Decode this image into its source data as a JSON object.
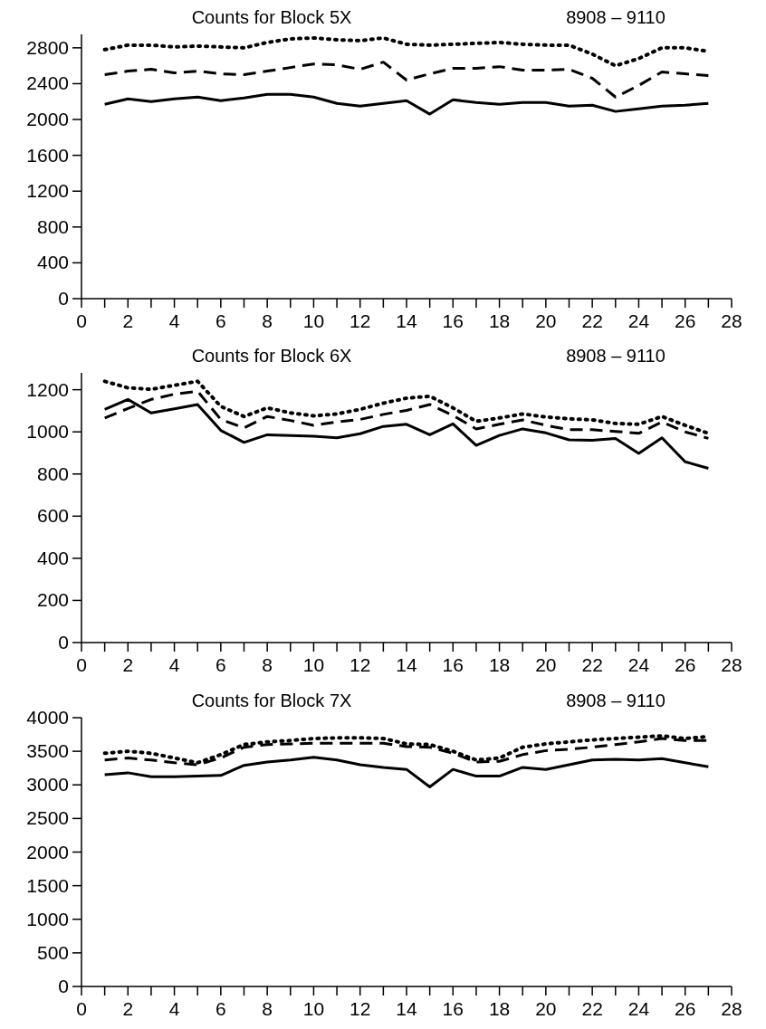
{
  "chart_data": [
    {
      "type": "line",
      "title": "Counts for Block 5X",
      "subtitle": "8908 – 9110",
      "x": [
        1,
        2,
        3,
        4,
        5,
        6,
        7,
        8,
        9,
        10,
        11,
        12,
        13,
        14,
        15,
        16,
        17,
        18,
        19,
        20,
        21,
        22,
        23,
        24,
        25,
        26,
        27
      ],
      "series": [
        {
          "color": "#000000",
          "line_style": "solid",
          "values": [
            2170,
            2230,
            2200,
            2230,
            2250,
            2210,
            2240,
            2280,
            2280,
            2250,
            2180,
            2150,
            2180,
            2210,
            2060,
            2220,
            2190,
            2170,
            2190,
            2190,
            2150,
            2160,
            2090,
            2120,
            2150,
            2160,
            2180
          ]
        },
        {
          "color": "#000000",
          "line_style": "dashed",
          "values": [
            2500,
            2540,
            2560,
            2520,
            2540,
            2510,
            2500,
            2540,
            2580,
            2620,
            2610,
            2560,
            2640,
            2440,
            2510,
            2570,
            2570,
            2590,
            2550,
            2550,
            2560,
            2460,
            2250,
            2380,
            2530,
            2510,
            2490
          ]
        },
        {
          "color": "#000000",
          "line_style": "dotted",
          "values": [
            2780,
            2830,
            2830,
            2810,
            2820,
            2810,
            2800,
            2860,
            2900,
            2910,
            2890,
            2880,
            2910,
            2840,
            2830,
            2840,
            2850,
            2860,
            2840,
            2830,
            2830,
            2730,
            2600,
            2680,
            2800,
            2800,
            2760
          ]
        }
      ],
      "xlim": [
        0,
        28
      ],
      "xticks": [
        0,
        {
          "value": 1,
          "label": null
        },
        2,
        {
          "value": 3,
          "label": null
        },
        4,
        {
          "value": 5,
          "label": null
        },
        6,
        {
          "value": 7,
          "label": null
        },
        8,
        {
          "value": 9,
          "label": null
        },
        10,
        {
          "value": 11,
          "label": null
        },
        12,
        {
          "value": 13,
          "label": null
        },
        14,
        {
          "value": 15,
          "label": null
        },
        16,
        {
          "value": 17,
          "label": null
        },
        18,
        {
          "value": 19,
          "label": null
        },
        20,
        {
          "value": 21,
          "label": null
        },
        22,
        {
          "value": 23,
          "label": null
        },
        24,
        {
          "value": 25,
          "label": null
        },
        26,
        {
          "value": 27,
          "label": null
        },
        28
      ],
      "ylim": [
        0,
        2950
      ],
      "yticks": [
        0,
        400,
        800,
        1200,
        1600,
        2000,
        2400,
        2800
      ],
      "grid": false
    },
    {
      "type": "line",
      "title": "Counts for Block 6X",
      "subtitle": "8908 – 9110",
      "x": [
        1,
        2,
        3,
        4,
        5,
        6,
        7,
        8,
        9,
        10,
        11,
        12,
        13,
        14,
        15,
        16,
        17,
        18,
        19,
        20,
        21,
        22,
        23,
        24,
        25,
        26,
        27
      ],
      "series": [
        {
          "color": "#000000",
          "line_style": "solid",
          "values": [
            1107,
            1154,
            1090,
            1109,
            1130,
            1007,
            950,
            986,
            983,
            979,
            972,
            991,
            1026,
            1036,
            986,
            1038,
            936,
            983,
            1014,
            995,
            962,
            960,
            969,
            898,
            972,
            858,
            827
          ]
        },
        {
          "color": "#000000",
          "line_style": "dashed",
          "values": [
            1066,
            1111,
            1154,
            1179,
            1193,
            1059,
            1019,
            1073,
            1054,
            1031,
            1047,
            1059,
            1083,
            1102,
            1130,
            1078,
            1014,
            1036,
            1057,
            1031,
            1010,
            1010,
            1002,
            993,
            1047,
            1000,
            969
          ]
        },
        {
          "color": "#000000",
          "line_style": "dotted",
          "values": [
            1240,
            1209,
            1202,
            1221,
            1240,
            1121,
            1073,
            1114,
            1090,
            1076,
            1085,
            1107,
            1136,
            1160,
            1169,
            1114,
            1050,
            1066,
            1085,
            1071,
            1062,
            1057,
            1040,
            1036,
            1073,
            1031,
            993
          ]
        }
      ],
      "xlim": [
        0,
        28
      ],
      "xticks": [
        0,
        {
          "value": 1,
          "label": null
        },
        2,
        {
          "value": 3,
          "label": null
        },
        4,
        {
          "value": 5,
          "label": null
        },
        6,
        {
          "value": 7,
          "label": null
        },
        8,
        {
          "value": 9,
          "label": null
        },
        10,
        {
          "value": 11,
          "label": null
        },
        12,
        {
          "value": 13,
          "label": null
        },
        14,
        {
          "value": 15,
          "label": null
        },
        16,
        {
          "value": 17,
          "label": null
        },
        18,
        {
          "value": 19,
          "label": null
        },
        20,
        {
          "value": 21,
          "label": null
        },
        22,
        {
          "value": 23,
          "label": null
        },
        24,
        {
          "value": 25,
          "label": null
        },
        26,
        {
          "value": 27,
          "label": null
        },
        28
      ],
      "ylim": [
        0,
        1280
      ],
      "yticks": [
        0,
        200,
        400,
        600,
        800,
        1000,
        1200
      ],
      "grid": false
    },
    {
      "type": "line",
      "title": "Counts for Block 7X",
      "subtitle": "8908 – 9110",
      "x": [
        1,
        2,
        3,
        4,
        5,
        6,
        7,
        8,
        9,
        10,
        11,
        12,
        13,
        14,
        15,
        16,
        17,
        18,
        19,
        20,
        21,
        22,
        23,
        24,
        25,
        26,
        27
      ],
      "series": [
        {
          "color": "#000000",
          "line_style": "solid",
          "values": [
            3150,
            3180,
            3120,
            3120,
            3130,
            3140,
            3290,
            3340,
            3370,
            3410,
            3370,
            3300,
            3260,
            3230,
            2970,
            3230,
            3130,
            3130,
            3260,
            3230,
            3300,
            3370,
            3380,
            3370,
            3390,
            3330,
            3270
          ]
        },
        {
          "color": "#000000",
          "line_style": "dashed",
          "values": [
            3370,
            3400,
            3370,
            3330,
            3300,
            3400,
            3560,
            3600,
            3610,
            3620,
            3620,
            3620,
            3620,
            3570,
            3560,
            3470,
            3340,
            3350,
            3450,
            3510,
            3530,
            3560,
            3600,
            3640,
            3690,
            3660,
            3660
          ]
        },
        {
          "color": "#000000",
          "line_style": "dotted",
          "values": [
            3470,
            3500,
            3470,
            3400,
            3330,
            3450,
            3600,
            3640,
            3660,
            3690,
            3700,
            3700,
            3690,
            3610,
            3600,
            3500,
            3370,
            3400,
            3560,
            3610,
            3640,
            3670,
            3690,
            3710,
            3730,
            3690,
            3720
          ]
        }
      ],
      "xlim": [
        0,
        28
      ],
      "xticks": [
        0,
        {
          "value": 1,
          "label": null
        },
        2,
        {
          "value": 3,
          "label": null
        },
        4,
        {
          "value": 5,
          "label": null
        },
        6,
        {
          "value": 7,
          "label": null
        },
        8,
        {
          "value": 9,
          "label": null
        },
        10,
        {
          "value": 11,
          "label": null
        },
        12,
        {
          "value": 13,
          "label": null
        },
        14,
        {
          "value": 15,
          "label": null
        },
        16,
        {
          "value": 17,
          "label": null
        },
        18,
        {
          "value": 19,
          "label": null
        },
        20,
        {
          "value": 21,
          "label": null
        },
        22,
        {
          "value": 23,
          "label": null
        },
        24,
        {
          "value": 25,
          "label": null
        },
        26,
        {
          "value": 27,
          "label": null
        },
        28
      ],
      "ylim": [
        0,
        4000
      ],
      "yticks": [
        0,
        500,
        1000,
        1500,
        2000,
        2500,
        3000,
        3500,
        4000
      ],
      "grid": false
    }
  ]
}
